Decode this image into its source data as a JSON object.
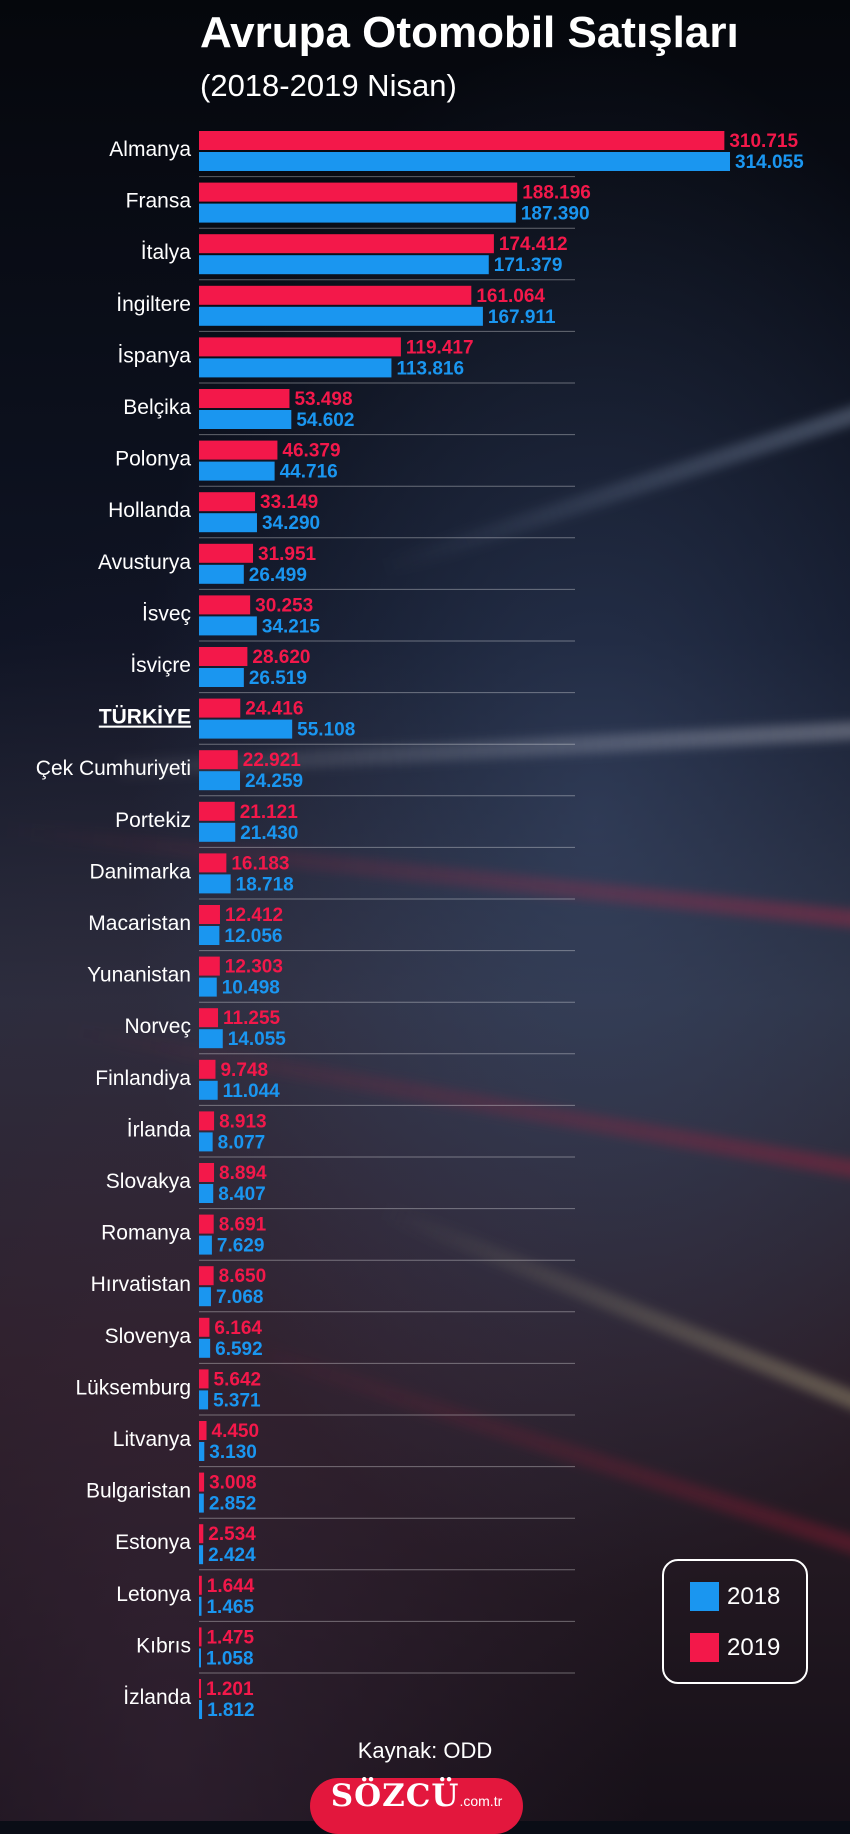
{
  "chart_data": {
    "type": "bar",
    "orientation": "horizontal",
    "title": "Avrupa Otomobil Satışları",
    "subtitle": "(2018-2019 Nisan)",
    "categories": [
      "Almanya",
      "Fransa",
      "İtalya",
      "İngiltere",
      "İspanya",
      "Belçika",
      "Polonya",
      "Hollanda",
      "Avusturya",
      "İsveç",
      "İsviçre",
      "TÜRKİYE",
      "Çek Cumhuriyeti",
      "Portekiz",
      "Danimarka",
      "Macaristan",
      "Yunanistan",
      "Norveç",
      "Finlandiya",
      "İrlanda",
      "Slovakya",
      "Romanya",
      "Hırvatistan",
      "Slovenya",
      "Lüksemburg",
      "Litvanya",
      "Bulgaristan",
      "Estonya",
      "Letonya",
      "Kıbrıs",
      "İzlanda"
    ],
    "highlight_category": "TÜRKİYE",
    "series": [
      {
        "name": "2019",
        "color": "#f3184a",
        "values": [
          310715,
          188196,
          174412,
          161064,
          119417,
          53498,
          46379,
          33149,
          31951,
          30253,
          28620,
          24416,
          22921,
          21121,
          16183,
          12412,
          12303,
          11255,
          9748,
          8913,
          8894,
          8691,
          8650,
          6164,
          5642,
          4450,
          3008,
          2534,
          1644,
          1475,
          1201
        ],
        "labels": [
          "310.715",
          "188.196",
          "174.412",
          "161.064",
          "119.417",
          "53.498",
          "46.379",
          "33.149",
          "31.951",
          "30.253",
          "28.620",
          "24.416",
          "22.921",
          "21.121",
          "16.183",
          "12.412",
          "12.303",
          "11.255",
          "9.748",
          "8.913",
          "8.894",
          "8.691",
          "8.650",
          "6.164",
          "5.642",
          "4.450",
          "3.008",
          "2.534",
          "1.644",
          "1.475",
          "1.201"
        ]
      },
      {
        "name": "2018",
        "color": "#1a96f0",
        "values": [
          314055,
          187390,
          171379,
          167911,
          113816,
          54602,
          44716,
          34290,
          26499,
          34215,
          26519,
          55108,
          24259,
          21430,
          18718,
          12056,
          10498,
          14055,
          11044,
          8077,
          8407,
          7629,
          7068,
          6592,
          5371,
          3130,
          2852,
          2424,
          1465,
          1058,
          1812
        ],
        "labels": [
          "314.055",
          "187.390",
          "171.379",
          "167.911",
          "113.816",
          "54.602",
          "44.716",
          "34.290",
          "26.499",
          "34.215",
          "26.519",
          "55.108",
          "24.259",
          "21.430",
          "18.718",
          "12.056",
          "10.498",
          "14.055",
          "11.044",
          "8.077",
          "8.407",
          "7.629",
          "7.068",
          "6.592",
          "5.371",
          "3.130",
          "2.852",
          "2.424",
          "1.465",
          "1.058",
          "1.812"
        ]
      }
    ],
    "legend_position": "bottom-right",
    "grid": false
  },
  "legend": [
    {
      "label": "2018",
      "color": "#1a96f0"
    },
    {
      "label": "2019",
      "color": "#f3184a"
    }
  ],
  "source": "Kaynak: ODD",
  "brand": {
    "name": "SÖZCÜ",
    "tld": ".com.tr",
    "color": "#e3173d"
  }
}
